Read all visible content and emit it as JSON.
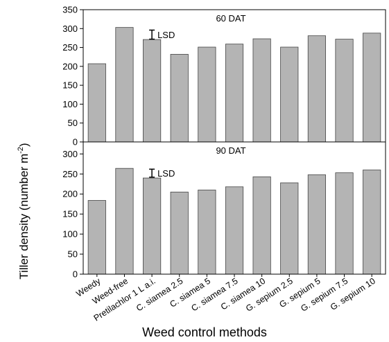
{
  "chart_data": {
    "type": "bar",
    "ylabel": "Tiller density (number m",
    "ylabel_sup": "-2",
    "ylabel_close": ")",
    "xlabel": "Weed control methods",
    "categories": [
      "Weedy",
      "Weed-free",
      "Pretilachlor 1 L a.i.",
      "C. siamea 2.5",
      "C. siamea 5",
      "C. siamea 7.5",
      "C. siamea 10",
      "G. sepium 2.5",
      "G. sepium 5",
      "G. sepium 7.5",
      "G. sepium 10"
    ],
    "bar_color": "#b4b4b4",
    "panels": [
      {
        "title": "60 DAT",
        "values": [
          207,
          303,
          271,
          232,
          251,
          259,
          273,
          251,
          281,
          272,
          288
        ],
        "ylim": [
          0,
          350
        ],
        "yticks": [
          0,
          50,
          100,
          150,
          200,
          250,
          300,
          350
        ],
        "lsd_label": "LSD",
        "lsd_center": 284,
        "lsd_half": 12,
        "lsd_category": 2
      },
      {
        "title": "90 DAT",
        "values": [
          184,
          264,
          240,
          205,
          210,
          218,
          243,
          228,
          248,
          253,
          260
        ],
        "ylim": [
          0,
          330
        ],
        "yticks": [
          0,
          50,
          100,
          150,
          200,
          250,
          300
        ],
        "lsd_label": "LSD",
        "lsd_center": 252,
        "lsd_half": 10,
        "lsd_category": 2
      }
    ]
  }
}
